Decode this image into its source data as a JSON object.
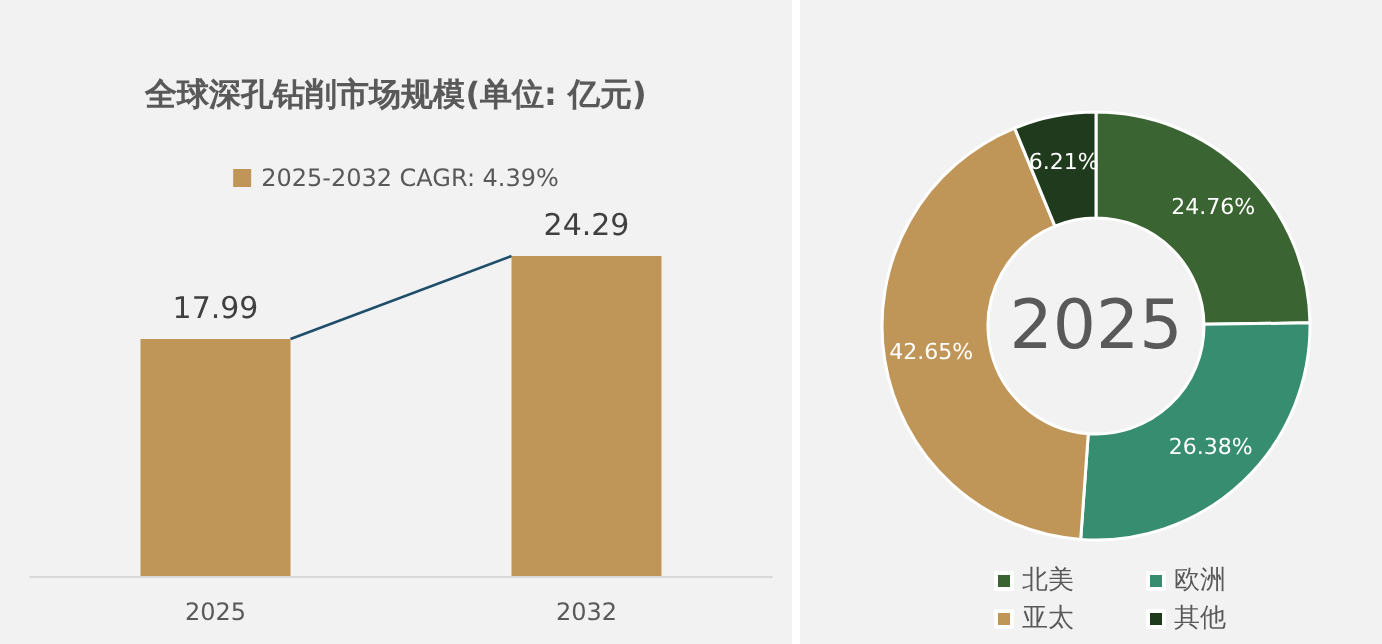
{
  "chart_data": [
    {
      "type": "bar",
      "title": "全球深孔钻削市场规模(单位: 亿元)",
      "categories": [
        "2025",
        "2032"
      ],
      "series": [
        {
          "name": "2025-2032 CAGR: 4.39%",
          "color": "#c09558",
          "values": [
            17.99,
            24.29
          ]
        }
      ],
      "data_labels": true,
      "legend": "top",
      "tick_labels": "x"
    },
    {
      "type": "donut",
      "categories": [
        "北美",
        "欧洲",
        "亚太",
        "其他"
      ],
      "values": [
        24.76,
        26.38,
        42.65,
        6.21
      ],
      "colors": [
        "#3a6431",
        "#368d6f",
        "#c09558",
        "#1f3a1c"
      ],
      "value_labels": [
        "24.76%",
        "26.38%",
        "42.65%",
        "6.21%"
      ],
      "annotations": [
        "2025"
      ],
      "legend": "bottom"
    }
  ]
}
